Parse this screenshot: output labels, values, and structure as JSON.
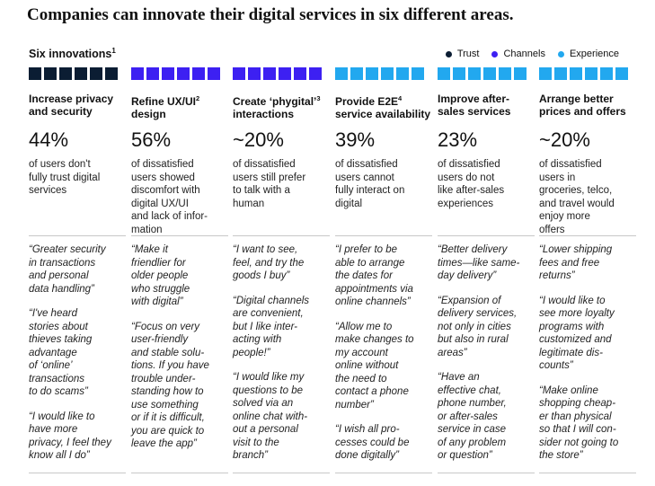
{
  "title": "Companies can innovate their digital services in six different areas.",
  "subtitle": "Six innovations",
  "subtitle_footnote": "1",
  "legend": [
    {
      "label": "Trust",
      "color": "#0b1d33"
    },
    {
      "label": "Channels",
      "color": "#3d20f2"
    },
    {
      "label": "Experience",
      "color": "#22a8ef"
    }
  ],
  "columns": [
    {
      "heading": "Increase privacy\nand security",
      "footnote": "",
      "color": "#0b1d33",
      "stat": "44%",
      "description": "of users don't\nfully trust digital\nservices",
      "quotes": [
        "“Greater security\nin transactions\nand personal\ndata handling”",
        "“I've heard\nstories about\nthieves taking\nadvantage\nof ‘online’\ntransactions\nto do scams”",
        "“I would like to\nhave more\nprivacy, I feel they\nknow all I do”"
      ]
    },
    {
      "heading": "Refine UX/UI\ndesign",
      "footnote": "2",
      "color": "#3d20f2",
      "stat": "56%",
      "description": "of dissatisfied\nusers showed\ndiscomfort with\ndigital UX/UI\nand lack of infor-\nmation",
      "quotes": [
        "“Make it\nfriendlier for\nolder people\nwho struggle\nwith digital”",
        "“Focus on very\nuser-friendly\nand stable solu-\ntions. If you have\ntrouble under-\nstanding how to\nuse something\nor if it is difficult,\nyou are quick to\nleave the app”"
      ]
    },
    {
      "heading": "Create ‘phygital’\ninteractions",
      "footnote": "3",
      "color": "#3d20f2",
      "stat": "~20%",
      "description": "of dissatisfied\nusers still prefer\nto talk with a\nhuman",
      "quotes": [
        "“I want to see,\nfeel, and try the\ngoods I buy”",
        "“Digital channels\nare convenient,\nbut I like inter-\nacting with\npeople!”",
        "“I would like my\nquestions to be\nsolved via an\nonline chat with-\nout a personal\nvisit to the\nbranch”"
      ]
    },
    {
      "heading": "Provide E2E\nservice availability",
      "footnote": "4",
      "color": "#22a8ef",
      "stat": "39%",
      "description": "of dissatisfied\nusers cannot\nfully interact on\ndigital",
      "quotes": [
        "“I prefer to be\nable to arrange\nthe dates for\nappointments via\nonline channels”",
        "“Allow me to\nmake changes to\nmy account\nonline without\nthe need to\ncontact a phone\nnumber”",
        "“I wish all pro-\ncesses could be\ndone digitally”"
      ]
    },
    {
      "heading": "Improve after-\nsales services",
      "footnote": "",
      "color": "#22a8ef",
      "stat": "23%",
      "description": "of dissatisfied\nusers do not\nlike after-sales\nexperiences",
      "quotes": [
        "“Better delivery\ntimes—like same-\nday delivery”",
        "“Expansion of\ndelivery services,\nnot only in cities\nbut also in rural\nareas”",
        "“Have an\neffective chat,\nphone number,\nor after-sales\nservice in case\nof any problem\nor question”"
      ]
    },
    {
      "heading": "Arrange better\nprices and offers",
      "footnote": "",
      "color": "#22a8ef",
      "stat": "~20%",
      "description": "of dissatisfied\nusers in\ngroceries, telco,\nand travel would\nenjoy more\noffers",
      "quotes": [
        "“Lower shipping\nfees and free\nreturns”",
        "“I would like to\nsee more loyalty\nprograms with\ncustomized and\nlegitimate dis-\ncounts”",
        "“Make online\nshopping cheap-\ner than physical\nso that I will con-\nsider not going to\nthe store”"
      ]
    }
  ]
}
